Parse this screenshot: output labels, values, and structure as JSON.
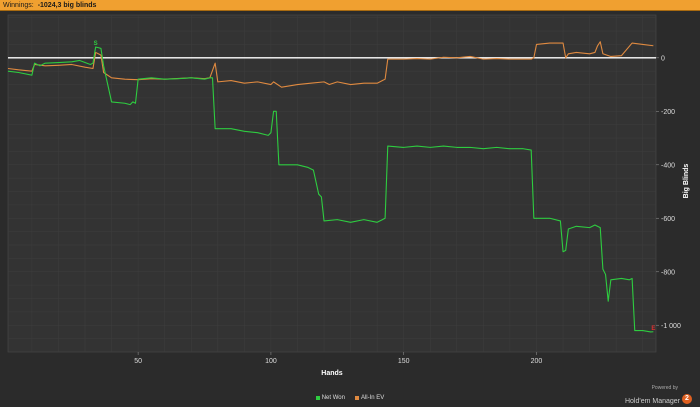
{
  "header": {
    "label": "Winnings:",
    "value": "-1024,3 big blinds"
  },
  "brand": {
    "powered_by": "Powered by",
    "product": "Hold'em Manager",
    "version_badge": "2"
  },
  "colors": {
    "background": "#2b2b2b",
    "plot_background": "#333333",
    "grid": "#3e3e3e",
    "net_won": "#2ecc40",
    "all_in_ev": "#e08a40",
    "zero_line": "#ffffff"
  },
  "chart_data": {
    "type": "line",
    "title": "",
    "xlabel": "Hands",
    "ylabel": "Big Blinds",
    "xlim": [
      1,
      245
    ],
    "ylim": [
      -1100,
      160
    ],
    "x_ticks": [
      50,
      100,
      150,
      200
    ],
    "y_ticks": [
      0,
      -200,
      -400,
      -600,
      -800,
      -1000
    ],
    "y_tick_labels": [
      "0",
      "-200",
      "-400",
      "-600",
      "-800",
      "-1 000"
    ],
    "y_axis_position": "right",
    "grid": true,
    "legend_position": "bottom-center",
    "series": [
      {
        "name": "Net Won",
        "color": "#2ecc40",
        "points": [
          [
            1,
            -50
          ],
          [
            5,
            -55
          ],
          [
            10,
            -65
          ],
          [
            11,
            -20
          ],
          [
            13,
            -30
          ],
          [
            15,
            -20
          ],
          [
            20,
            -18
          ],
          [
            25,
            -15
          ],
          [
            28,
            -10
          ],
          [
            32,
            -25
          ],
          [
            33,
            -20
          ],
          [
            34,
            40
          ],
          [
            35,
            38
          ],
          [
            36,
            35
          ],
          [
            37,
            -30
          ],
          [
            40,
            -165
          ],
          [
            45,
            -170
          ],
          [
            47,
            -175
          ],
          [
            48,
            -165
          ],
          [
            49,
            -170
          ],
          [
            50,
            -80
          ],
          [
            55,
            -75
          ],
          [
            60,
            -80
          ],
          [
            65,
            -78
          ],
          [
            70,
            -75
          ],
          [
            75,
            -80
          ],
          [
            77,
            -75
          ],
          [
            78,
            -75
          ],
          [
            79,
            -265
          ],
          [
            85,
            -265
          ],
          [
            90,
            -275
          ],
          [
            95,
            -280
          ],
          [
            99,
            -290
          ],
          [
            100,
            -280
          ],
          [
            101,
            -200
          ],
          [
            102,
            -200
          ],
          [
            103,
            -400
          ],
          [
            110,
            -400
          ],
          [
            114,
            -410
          ],
          [
            116,
            -420
          ],
          [
            118,
            -510
          ],
          [
            119,
            -520
          ],
          [
            120,
            -610
          ],
          [
            125,
            -605
          ],
          [
            130,
            -615
          ],
          [
            135,
            -605
          ],
          [
            140,
            -615
          ],
          [
            142,
            -605
          ],
          [
            143,
            -600
          ],
          [
            144,
            -330
          ],
          [
            150,
            -335
          ],
          [
            155,
            -330
          ],
          [
            160,
            -335
          ],
          [
            165,
            -330
          ],
          [
            170,
            -335
          ],
          [
            175,
            -335
          ],
          [
            180,
            -340
          ],
          [
            185,
            -335
          ],
          [
            190,
            -340
          ],
          [
            195,
            -340
          ],
          [
            198,
            -345
          ],
          [
            199,
            -600
          ],
          [
            205,
            -600
          ],
          [
            209,
            -610
          ],
          [
            210,
            -725
          ],
          [
            211,
            -720
          ],
          [
            212,
            -640
          ],
          [
            215,
            -630
          ],
          [
            220,
            -635
          ],
          [
            222,
            -625
          ],
          [
            224,
            -635
          ],
          [
            225,
            -790
          ],
          [
            226,
            -810
          ],
          [
            227,
            -910
          ],
          [
            228,
            -830
          ],
          [
            232,
            -825
          ],
          [
            235,
            -830
          ],
          [
            236,
            -825
          ],
          [
            237,
            -1020
          ],
          [
            240,
            -1020
          ],
          [
            243,
            -1025
          ],
          [
            244,
            -1024.3
          ]
        ]
      },
      {
        "name": "All-In EV",
        "color": "#e08a40",
        "points": [
          [
            1,
            -40
          ],
          [
            5,
            -45
          ],
          [
            10,
            -50
          ],
          [
            11,
            -25
          ],
          [
            15,
            -30
          ],
          [
            20,
            -28
          ],
          [
            25,
            -25
          ],
          [
            30,
            -35
          ],
          [
            33,
            -40
          ],
          [
            34,
            20
          ],
          [
            35,
            15
          ],
          [
            36,
            10
          ],
          [
            37,
            -55
          ],
          [
            40,
            -75
          ],
          [
            45,
            -80
          ],
          [
            50,
            -82
          ],
          [
            55,
            -78
          ],
          [
            60,
            -80
          ],
          [
            70,
            -75
          ],
          [
            75,
            -78
          ],
          [
            77,
            -75
          ],
          [
            79,
            -20
          ],
          [
            80,
            -90
          ],
          [
            85,
            -85
          ],
          [
            90,
            -95
          ],
          [
            95,
            -90
          ],
          [
            100,
            -100
          ],
          [
            101,
            -90
          ],
          [
            104,
            -110
          ],
          [
            110,
            -100
          ],
          [
            115,
            -95
          ],
          [
            120,
            -90
          ],
          [
            122,
            -100
          ],
          [
            125,
            -90
          ],
          [
            130,
            -100
          ],
          [
            135,
            -95
          ],
          [
            140,
            -95
          ],
          [
            142,
            -85
          ],
          [
            143,
            -80
          ],
          [
            144,
            -5
          ],
          [
            150,
            -5
          ],
          [
            155,
            -3
          ],
          [
            160,
            -5
          ],
          [
            165,
            2
          ],
          [
            170,
            0
          ],
          [
            175,
            5
          ],
          [
            180,
            -5
          ],
          [
            185,
            -3
          ],
          [
            190,
            -5
          ],
          [
            195,
            -5
          ],
          [
            198,
            -5
          ],
          [
            199,
            0
          ],
          [
            200,
            50
          ],
          [
            205,
            55
          ],
          [
            210,
            55
          ],
          [
            211,
            0
          ],
          [
            212,
            15
          ],
          [
            215,
            20
          ],
          [
            220,
            15
          ],
          [
            222,
            20
          ],
          [
            223,
            45
          ],
          [
            224,
            60
          ],
          [
            225,
            15
          ],
          [
            228,
            5
          ],
          [
            232,
            8
          ],
          [
            236,
            55
          ],
          [
            240,
            50
          ],
          [
            244,
            45
          ]
        ]
      }
    ],
    "markers": [
      {
        "label": "S",
        "x": 34,
        "y": 40,
        "color": "#2ecc40"
      },
      {
        "label": "E",
        "x": 244,
        "y": -1024.3,
        "color": "#e03030"
      }
    ]
  }
}
